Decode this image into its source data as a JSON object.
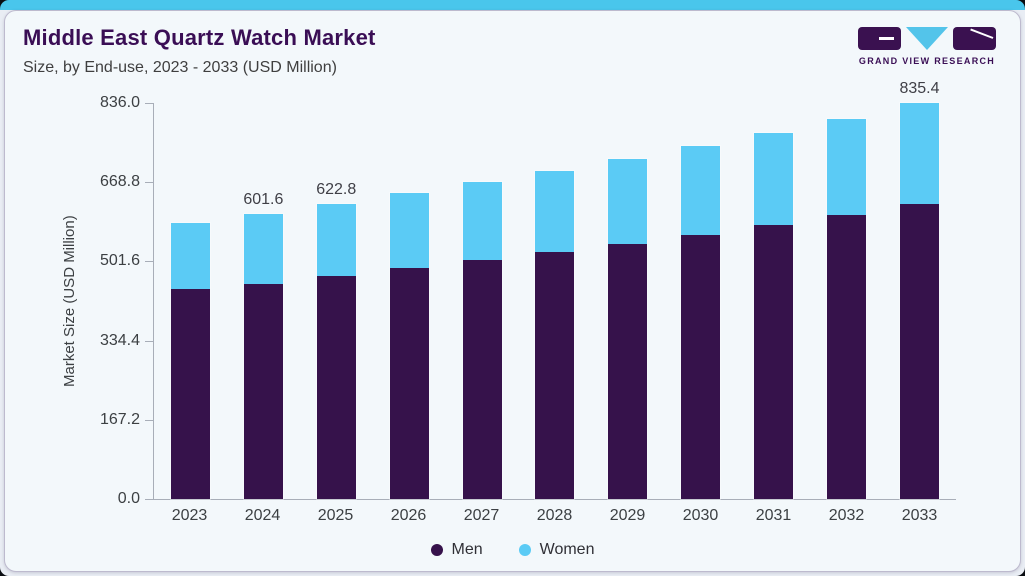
{
  "header": {
    "title": "Middle East Quartz Watch Market",
    "subtitle": "Size, by End-use, 2023 - 2033 (USD Million)",
    "logo_text": "GRAND VIEW RESEARCH"
  },
  "colors": {
    "accent_bar": "#49C6EC",
    "card_bg": "#F3F8FB",
    "title_purple": "#3A0E55",
    "men": "#36124B",
    "women": "#5BCBF5",
    "axis": "#A8AEB8"
  },
  "chart_data": {
    "type": "bar",
    "stacked": true,
    "title": "Middle East Quartz Watch Market",
    "subtitle": "Size, by End-use, 2023 - 2033 (USD Million)",
    "xlabel": "",
    "ylabel": "Market Size (USD Million)",
    "ylim": [
      0,
      836.0
    ],
    "yticks": [
      0.0,
      167.2,
      334.4,
      501.6,
      668.8,
      836.0
    ],
    "grid": false,
    "legend_position": "bottom",
    "categories": [
      "2023",
      "2024",
      "2025",
      "2026",
      "2027",
      "2028",
      "2029",
      "2030",
      "2031",
      "2032",
      "2033"
    ],
    "series": [
      {
        "name": "Men",
        "color": "#36124B",
        "values": [
          442.5,
          454.8,
          471.3,
          487.4,
          505.4,
          522.1,
          539.4,
          558.1,
          578.5,
          599.3,
          621.9
        ]
      },
      {
        "name": "Women",
        "color": "#5BCBF5",
        "values": [
          139.5,
          146.8,
          151.5,
          157.9,
          163.5,
          170.2,
          178.8,
          186.5,
          193.7,
          203.7,
          213.5
        ]
      }
    ],
    "totals_estimated": [
      582.0,
      601.6,
      622.8,
      645.3,
      668.9,
      692.3,
      718.2,
      744.6,
      772.2,
      803.0,
      835.4
    ],
    "total_labels": {
      "2024": "601.6",
      "2025": "622.8",
      "2033": "835.4"
    }
  }
}
